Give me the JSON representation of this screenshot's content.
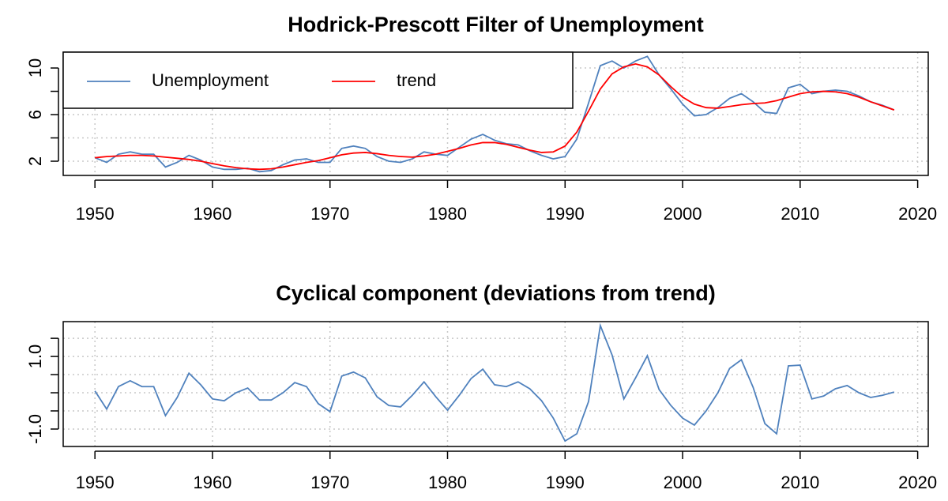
{
  "chart_data": [
    {
      "type": "line",
      "title": "Hodrick-Prescott Filter of Unemployment",
      "x": [
        1950,
        1951,
        1952,
        1953,
        1954,
        1955,
        1956,
        1957,
        1958,
        1959,
        1960,
        1961,
        1962,
        1963,
        1964,
        1965,
        1966,
        1967,
        1968,
        1969,
        1970,
        1971,
        1972,
        1973,
        1974,
        1975,
        1976,
        1977,
        1978,
        1979,
        1980,
        1981,
        1982,
        1983,
        1984,
        1985,
        1986,
        1987,
        1988,
        1989,
        1990,
        1991,
        1992,
        1993,
        1994,
        1995,
        1996,
        1997,
        1998,
        1999,
        2000,
        2001,
        2002,
        2003,
        2004,
        2005,
        2006,
        2007,
        2008,
        2009,
        2010,
        2011,
        2012,
        2013,
        2014,
        2015,
        2016,
        2017,
        2018
      ],
      "series": [
        {
          "name": "Unemployment",
          "color": "#4f81bd",
          "values": [
            2.3,
            1.9,
            2.6,
            2.8,
            2.6,
            2.6,
            1.5,
            1.9,
            2.5,
            2.1,
            1.5,
            1.3,
            1.3,
            1.4,
            1.1,
            1.2,
            1.7,
            2.1,
            2.2,
            1.9,
            1.9,
            3.1,
            3.3,
            3.1,
            2.4,
            2.0,
            1.9,
            2.2,
            2.8,
            2.6,
            2.5,
            3.2,
            3.9,
            4.3,
            3.8,
            3.5,
            3.4,
            2.9,
            2.5,
            2.2,
            2.4,
            3.9,
            7.0,
            10.2,
            10.6,
            10.0,
            10.6,
            11.0,
            9.4,
            8.2,
            6.9,
            5.9,
            6.0,
            6.6,
            7.4,
            7.8,
            7.1,
            6.2,
            6.1,
            8.3,
            8.6,
            7.8,
            8.0,
            8.1,
            8.0,
            7.6,
            7.1,
            6.8,
            6.4
          ]
        },
        {
          "name": "trend",
          "color": "#ff0000",
          "values": [
            2.3,
            2.4,
            2.45,
            2.5,
            2.5,
            2.45,
            2.35,
            2.25,
            2.15,
            2.0,
            1.8,
            1.6,
            1.45,
            1.35,
            1.3,
            1.35,
            1.5,
            1.7,
            1.9,
            2.05,
            2.3,
            2.55,
            2.7,
            2.75,
            2.65,
            2.5,
            2.4,
            2.35,
            2.45,
            2.6,
            2.85,
            3.1,
            3.4,
            3.6,
            3.6,
            3.45,
            3.2,
            2.95,
            2.75,
            2.8,
            3.3,
            4.5,
            6.3,
            8.2,
            9.5,
            10.1,
            10.35,
            10.1,
            9.4,
            8.4,
            7.5,
            6.9,
            6.6,
            6.55,
            6.7,
            6.85,
            6.95,
            7.0,
            7.2,
            7.5,
            7.8,
            7.95,
            8.0,
            7.95,
            7.8,
            7.5,
            7.1,
            6.75,
            6.4
          ]
        }
      ],
      "xlim": [
        1947.3,
        2020.9
      ],
      "xticks": [
        1950,
        1960,
        1970,
        1980,
        1990,
        2000,
        2010,
        2020
      ],
      "ylim": [
        0.78,
        11.36
      ],
      "yticks": [
        2,
        6,
        10
      ],
      "yticks_unlabeled": [
        4,
        8
      ],
      "grid": true,
      "legend": "topleft"
    },
    {
      "type": "line",
      "title": "Cyclical component (deviations from trend)",
      "x": [
        1950,
        1951,
        1952,
        1953,
        1954,
        1955,
        1956,
        1957,
        1958,
        1959,
        1960,
        1961,
        1962,
        1963,
        1964,
        1965,
        1966,
        1967,
        1968,
        1969,
        1970,
        1971,
        1972,
        1973,
        1974,
        1975,
        1976,
        1977,
        1978,
        1979,
        1980,
        1981,
        1982,
        1983,
        1984,
        1985,
        1986,
        1987,
        1988,
        1989,
        1990,
        1991,
        1992,
        1993,
        1994,
        1995,
        1996,
        1997,
        1998,
        1999,
        2000,
        2001,
        2002,
        2003,
        2004,
        2005,
        2006,
        2007,
        2008,
        2009,
        2010,
        2011,
        2012,
        2013,
        2014,
        2015,
        2016,
        2017,
        2018
      ],
      "series": [
        {
          "color": "#4f81bd",
          "values": [
            0.05,
            -0.45,
            0.17,
            0.33,
            0.17,
            0.17,
            -0.63,
            -0.13,
            0.54,
            0.22,
            -0.17,
            -0.22,
            0,
            0.13,
            -0.2,
            -0.2,
            0,
            0.28,
            0.17,
            -0.3,
            -0.52,
            0.46,
            0.57,
            0.41,
            -0.11,
            -0.35,
            -0.39,
            -0.07,
            0.3,
            -0.11,
            -0.48,
            -0.07,
            0.39,
            0.65,
            0.22,
            0.17,
            0.3,
            0.11,
            -0.22,
            -0.7,
            -1.33,
            -1.13,
            -0.24,
            1.85,
            1.04,
            -0.17,
            0.41,
            1.02,
            0.09,
            -0.35,
            -0.7,
            -0.89,
            -0.5,
            0,
            0.67,
            0.91,
            0.15,
            -0.85,
            -1.13,
            0.74,
            0.76,
            -0.17,
            -0.09,
            0.11,
            0.2,
            0,
            -0.13,
            -0.07,
            0.02
          ]
        }
      ],
      "xlim": [
        1947.3,
        2020.9
      ],
      "xticks": [
        1950,
        1960,
        1970,
        1980,
        1990,
        2000,
        2010,
        2020
      ],
      "ylim": [
        -1.48,
        1.96
      ],
      "yticks": [
        {
          "value": 1,
          "label": "1.0"
        },
        {
          "value": -1,
          "label": "-1.0"
        }
      ],
      "yticks_unlabeled": [
        1.5,
        0.5,
        0,
        -0.5
      ],
      "grid": true
    }
  ]
}
